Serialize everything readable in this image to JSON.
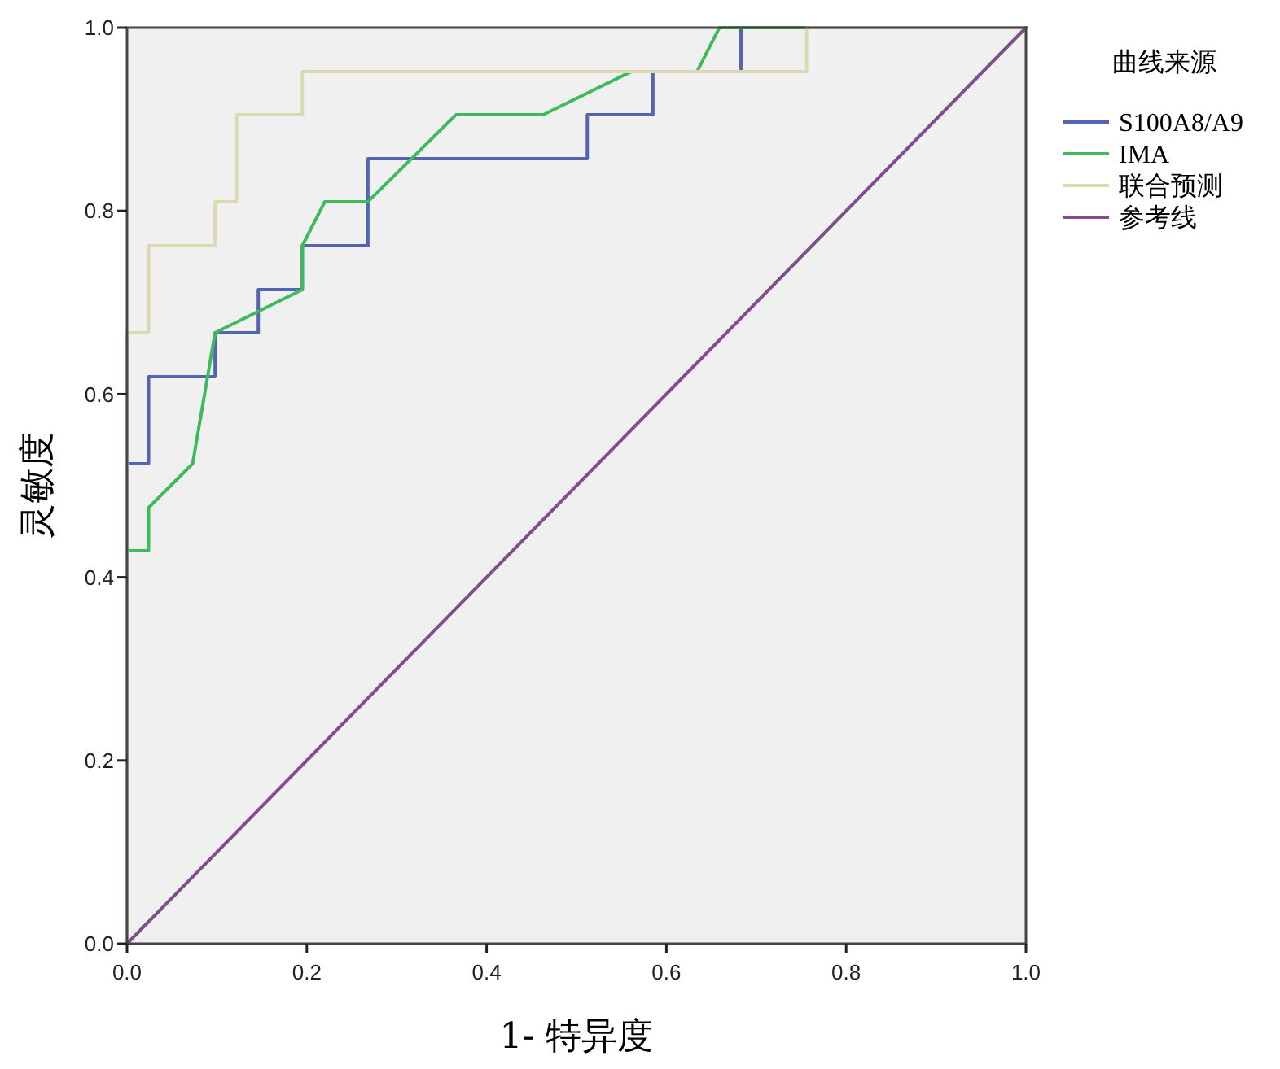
{
  "chart_data": {
    "type": "line",
    "xlabel": "1- 特异度",
    "ylabel": "灵敏度",
    "legend_title": "曲线来源",
    "legend": "right",
    "xlim": [
      0,
      1
    ],
    "ylim": [
      0,
      1
    ],
    "xticks": [
      {
        "value": 0,
        "label": "0.0"
      },
      0.2,
      0.4,
      0.6,
      0.8,
      {
        "value": 1,
        "label": "1.0"
      }
    ],
    "yticks": [
      {
        "value": 0,
        "label": "0.0"
      },
      0.2,
      0.4,
      0.6,
      0.8,
      {
        "value": 1,
        "label": "1.0"
      }
    ],
    "series": [
      {
        "name": "S100A8/A9",
        "color": "#5464b0",
        "x": [
          0,
          0,
          0.024,
          0.024,
          0.098,
          0.098,
          0.146,
          0.146,
          0.195,
          0.195,
          0.268,
          0.268,
          0.512,
          0.512,
          0.585,
          0.585,
          0.683,
          0.683,
          1
        ],
        "values": [
          0,
          0.524,
          0.524,
          0.619,
          0.619,
          0.667,
          0.667,
          0.714,
          0.714,
          0.762,
          0.762,
          0.857,
          0.857,
          0.905,
          0.905,
          0.952,
          0.952,
          1,
          1
        ]
      },
      {
        "name": "IMA",
        "color": "#3dbb5c",
        "x": [
          0,
          0,
          0.024,
          0.024,
          0.073,
          0.098,
          0.195,
          0.195,
          0.22,
          0.268,
          0.366,
          0.463,
          0.561,
          0.634,
          0.659,
          1
        ],
        "values": [
          0,
          0.429,
          0.429,
          0.476,
          0.524,
          0.667,
          0.714,
          0.762,
          0.81,
          0.81,
          0.905,
          0.905,
          0.952,
          0.952,
          1,
          1
        ]
      },
      {
        "name": "联合预测",
        "color": "#dcd9b0",
        "x": [
          0,
          0,
          0.024,
          0.024,
          0.098,
          0.098,
          0.122,
          0.122,
          0.195,
          0.195,
          0.756,
          0.756,
          1
        ],
        "values": [
          0,
          0.667,
          0.667,
          0.762,
          0.762,
          0.81,
          0.81,
          0.905,
          0.905,
          0.952,
          0.952,
          1,
          1
        ]
      },
      {
        "name": "参考线",
        "color": "#824c8e",
        "x": [
          0,
          1
        ],
        "values": [
          0,
          1
        ]
      }
    ]
  }
}
